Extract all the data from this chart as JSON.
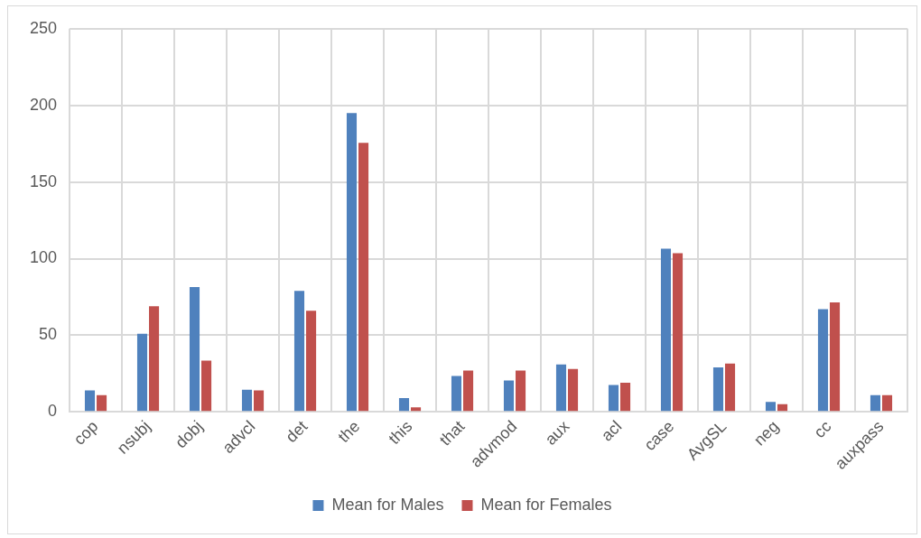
{
  "chart_data": {
    "type": "bar",
    "categories": [
      "cop",
      "nsubj",
      "dobj",
      "advcl",
      "det",
      "the",
      "this",
      "that",
      "advmod",
      "aux",
      "acl",
      "case",
      "AvgSL",
      "neg",
      "cc",
      "auxpass"
    ],
    "series": [
      {
        "name": "Mean for Males",
        "color": "#4f81bd",
        "values": [
          14,
          51,
          81.5,
          14.5,
          79,
          195,
          9,
          23.5,
          20.5,
          31,
          17.5,
          106.5,
          29,
          6.5,
          67,
          11
        ]
      },
      {
        "name": "Mean for Females",
        "color": "#c0504d",
        "values": [
          11,
          69,
          33.5,
          14,
          66,
          175.5,
          3,
          27,
          27,
          28,
          19,
          103.5,
          31.5,
          5,
          71.5,
          11
        ]
      }
    ],
    "ylim": [
      0,
      250
    ],
    "yticks": [
      0,
      50,
      100,
      150,
      200,
      250
    ],
    "grid": true,
    "legend": "bottom"
  }
}
